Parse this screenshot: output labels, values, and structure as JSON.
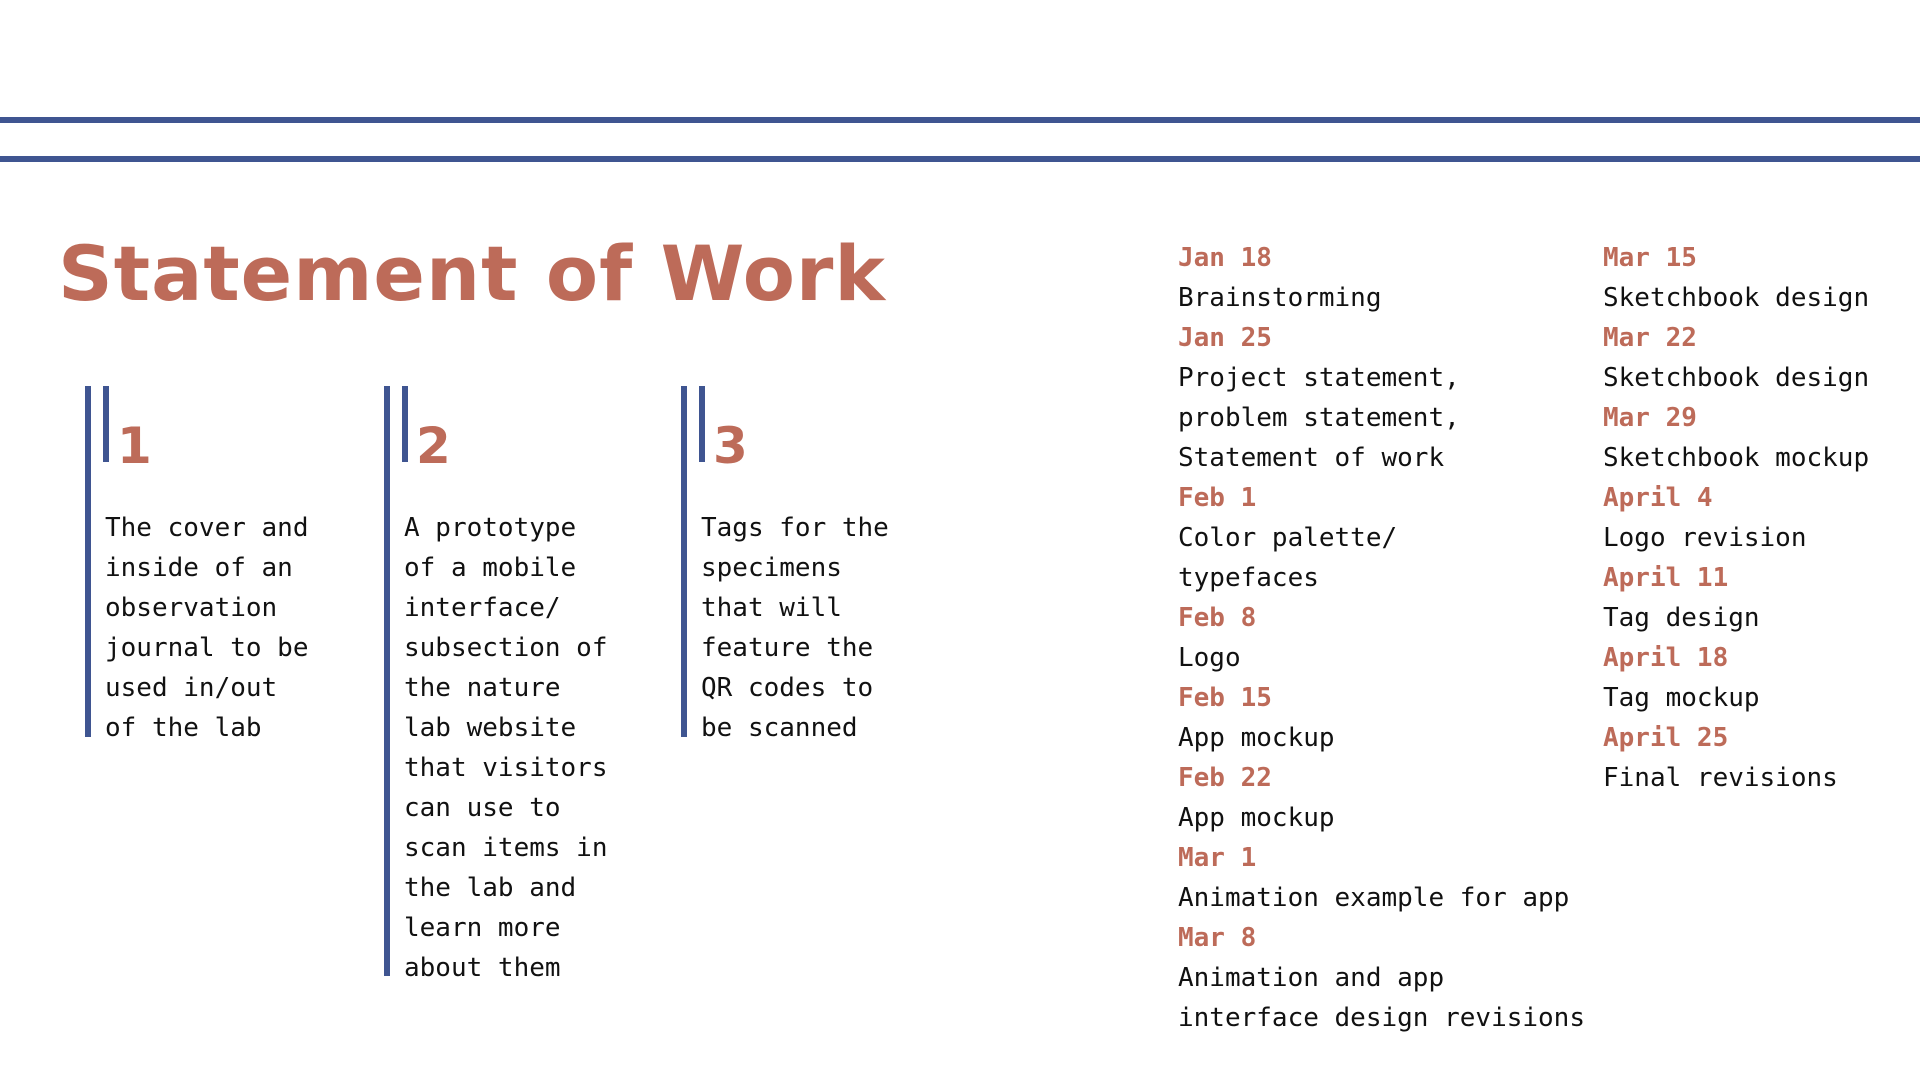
{
  "title": "Statement of Work",
  "colors": {
    "accent_rust": "#bd6b59",
    "rule_blue": "#3f5591"
  },
  "deliverables": [
    {
      "number": "1",
      "text": "The cover and\ninside of an\nobservation\njournal to be\nused in/out\nof the lab"
    },
    {
      "number": "2",
      "text": "A prototype\nof a mobile\ninterface/\nsubsection of\nthe nature\nlab website\nthat visitors\ncan use to\nscan items in\nthe lab and\nlearn more\nabout them"
    },
    {
      "number": "3",
      "text": "Tags for the\nspecimens\nthat will\nfeature the\nQR codes to\nbe scanned"
    }
  ],
  "schedule": {
    "column_1": [
      {
        "date": "Jan 18",
        "task": "Brainstorming"
      },
      {
        "date": "Jan 25",
        "task": "Project statement,\nproblem statement,\nStatement of work"
      },
      {
        "date": "Feb 1",
        "task": "Color palette/\ntypefaces"
      },
      {
        "date": "Feb 8",
        "task": "Logo"
      },
      {
        "date": "Feb 15",
        "task": "App mockup"
      },
      {
        "date": "Feb 22",
        "task": "App mockup"
      },
      {
        "date": "Mar 1",
        "task": "Animation example for app"
      },
      {
        "date": "Mar 8",
        "task": "Animation and app\ninterface design revisions"
      }
    ],
    "column_2": [
      {
        "date": "Mar 15",
        "task": "Sketchbook design"
      },
      {
        "date": "Mar 22",
        "task": "Sketchbook design"
      },
      {
        "date": "Mar 29",
        "task": "Sketchbook mockup"
      },
      {
        "date": "April 4",
        "task": "Logo revision"
      },
      {
        "date": "April 11",
        "task": "Tag design"
      },
      {
        "date": "April 18",
        "task": "Tag mockup"
      },
      {
        "date": "April 25",
        "task": "Final revisions"
      }
    ]
  }
}
